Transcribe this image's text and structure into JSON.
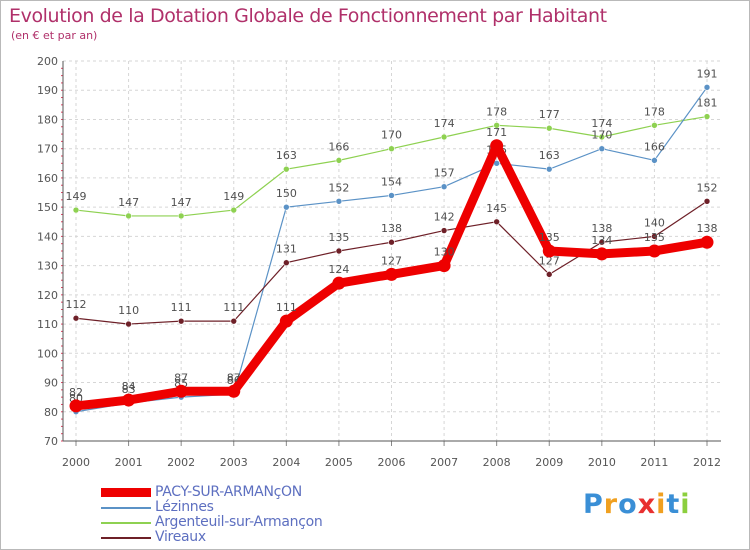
{
  "chart_data": {
    "type": "line",
    "title": "Evolution de la Dotation Globale de Fonctionnement par Habitant",
    "subtitle": "(en € et par an)",
    "xlabel": "",
    "ylabel": "",
    "ylim": [
      70,
      200
    ],
    "yticks": [
      70,
      80,
      90,
      100,
      110,
      120,
      130,
      140,
      150,
      160,
      170,
      180,
      190,
      200
    ],
    "grid": true,
    "legend_position": "bottom-left",
    "categories": [
      "2000",
      "2001",
      "2002",
      "2003",
      "2004",
      "2005",
      "2006",
      "2007",
      "2008",
      "2009",
      "2010",
      "2011",
      "2012"
    ],
    "series": [
      {
        "name": "Argenteuil-sur-Armançon",
        "color": "#8ed151",
        "values": [
          149,
          147,
          147,
          149,
          163,
          166,
          170,
          174,
          178,
          177,
          174,
          178,
          181
        ]
      },
      {
        "name": "Lézinnes",
        "color": "#5b92c6",
        "values": [
          80,
          83,
          85,
          86,
          150,
          152,
          154,
          157,
          165,
          163,
          170,
          166,
          191
        ]
      },
      {
        "name": "Vireaux",
        "color": "#6e2028",
        "values": [
          112,
          110,
          111,
          111,
          131,
          135,
          138,
          142,
          145,
          127,
          138,
          140,
          152
        ]
      },
      {
        "name": "PACY-SUR-ARMANçON",
        "color": "#ee0000",
        "values": [
          82,
          84,
          87,
          87,
          111,
          124,
          127,
          130,
          171,
          135,
          134,
          135,
          138
        ]
      }
    ]
  },
  "legend": {
    "items": [
      {
        "label": "PACY-SUR-ARMANçON",
        "color": "#ee0000",
        "thickness": "thick"
      },
      {
        "label": "Lézinnes",
        "color": "#5b92c6",
        "thickness": "thin"
      },
      {
        "label": "Argenteuil-sur-Armançon",
        "color": "#8ed151",
        "thickness": "thin"
      },
      {
        "label": "Vireaux",
        "color": "#6e2028",
        "thickness": "thin"
      }
    ]
  },
  "branding": {
    "logo_letters": [
      "P",
      "r",
      "o",
      "x",
      "i",
      "t",
      "i"
    ],
    "logo_colors": [
      "#3a8fd6",
      "#f0a020",
      "#3a8fd6",
      "#e83030",
      "#f0a020",
      "#3a8fd6",
      "#8ccf3e"
    ]
  }
}
